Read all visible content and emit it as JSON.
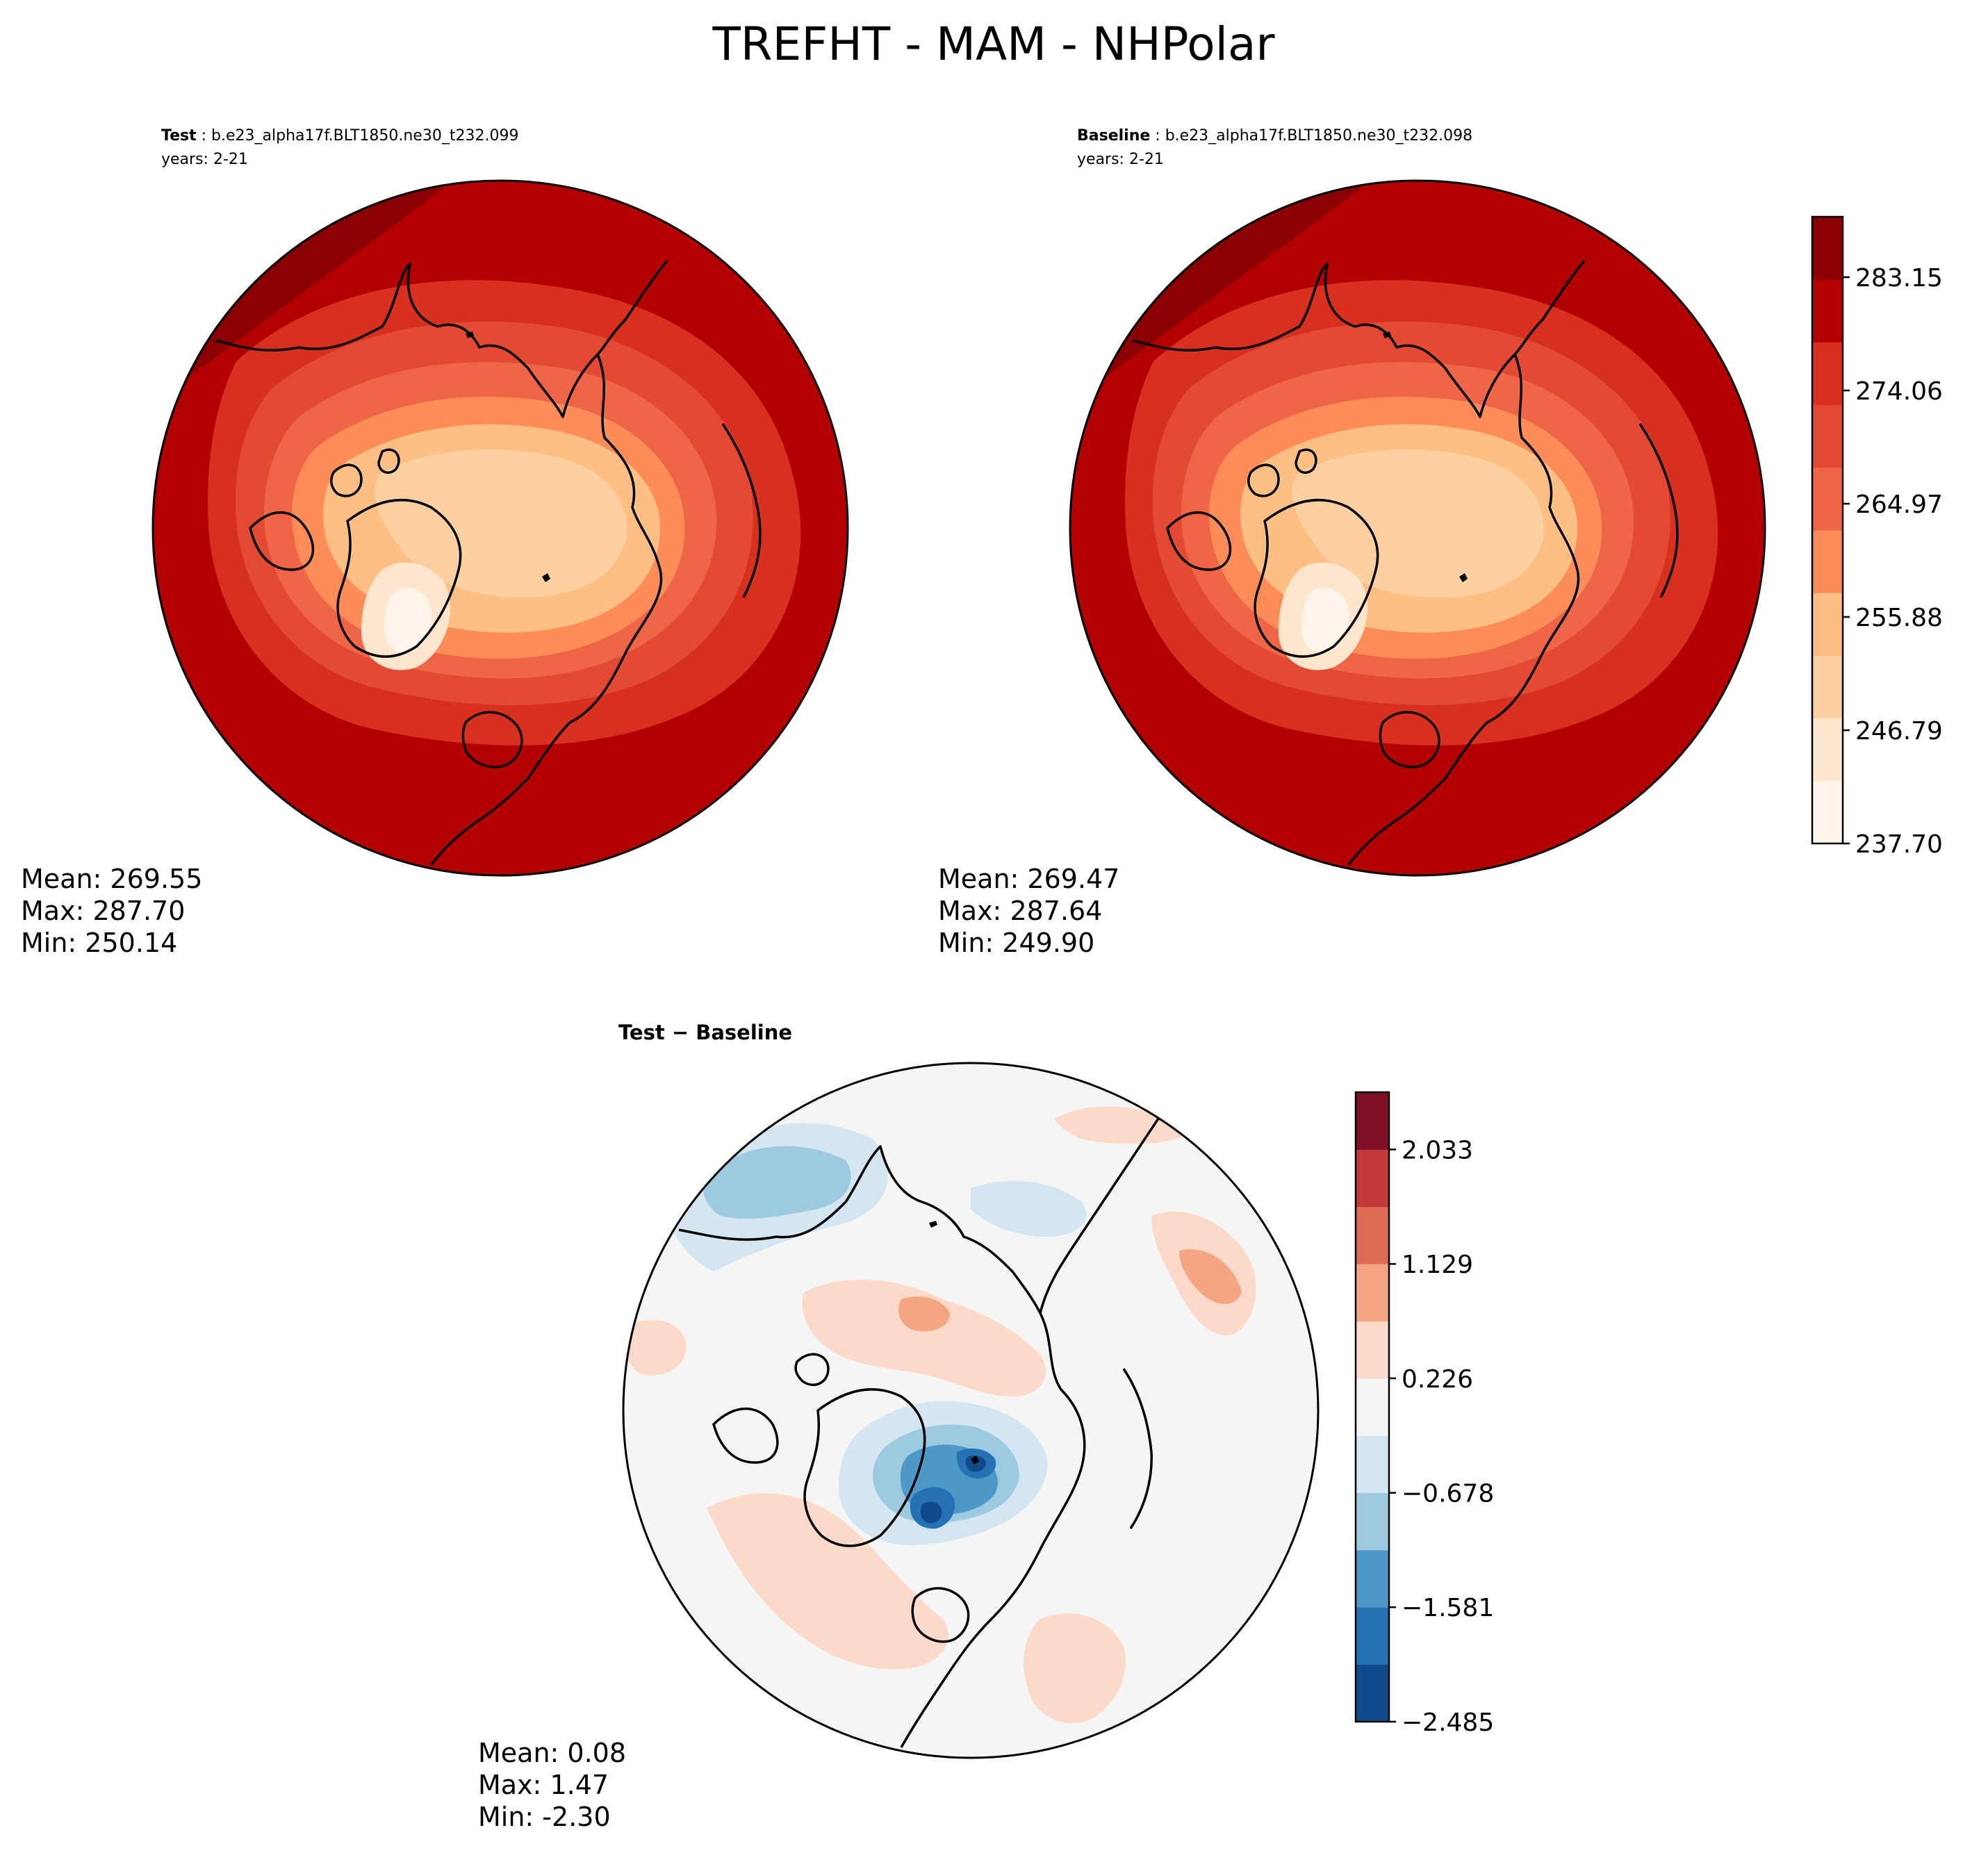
{
  "figure": {
    "title": "TREFHT - MAM - NHPolar"
  },
  "panels": {
    "test": {
      "label_bold": "Test",
      "label_rest": " : b.e23_alpha17f.BLT1850.ne30_t232.099",
      "years": "years: 2-21",
      "mean": "Mean: 269.55",
      "max": "Max: 287.70",
      "min": "Min: 250.14"
    },
    "baseline": {
      "label_bold": "Baseline",
      "label_rest": " : b.e23_alpha17f.BLT1850.ne30_t232.098",
      "years": "years: 2-21",
      "mean": "Mean: 269.47",
      "max": "Max: 287.64",
      "min": "Min: 249.90"
    },
    "diff": {
      "title": "Test − Baseline",
      "mean": "Mean:  0.08",
      "max": "Max:  1.47",
      "min": "Min: -2.30"
    }
  },
  "colors": {
    "field_levels": [
      "#fff5eb",
      "#fee6ce",
      "#fdd0a2",
      "#fdbf84",
      "#fc8d59",
      "#ef6548",
      "#e34a33",
      "#d7301f",
      "#b30000",
      "#8b0000"
    ],
    "diff_levels": [
      "#104a8b",
      "#2671b4",
      "#4d98c7",
      "#9ecae1",
      "#d4e6f2",
      "#f5f5f5",
      "#fdd9c9",
      "#f4a582",
      "#de6b54",
      "#c23a3a",
      "#7f0f26"
    ]
  },
  "chart_data": [
    {
      "type": "heatmap",
      "name": "test",
      "projection": "north-polar-stereographic",
      "statistics": {
        "mean": 269.55,
        "max": 287.7,
        "min": 250.14
      }
    },
    {
      "type": "heatmap",
      "name": "baseline",
      "projection": "north-polar-stereographic",
      "statistics": {
        "mean": 269.47,
        "max": 287.64,
        "min": 249.9
      }
    },
    {
      "type": "heatmap",
      "name": "test-baseline",
      "projection": "north-polar-stereographic",
      "statistics": {
        "mean": 0.08,
        "max": 1.47,
        "min": -2.3
      }
    }
  ],
  "colorbars": {
    "field": {
      "range": [
        237.7,
        288.0
      ],
      "levels_count": 11,
      "ticks": [
        237.7,
        246.79,
        255.88,
        264.97,
        274.06,
        283.15
      ],
      "tick_labels": [
        "237.70",
        "246.79",
        "255.88",
        "264.97",
        "274.06",
        "283.15"
      ]
    },
    "diff": {
      "range": [
        -2.485,
        2.485
      ],
      "levels_count": 11,
      "ticks": [
        -2.485,
        -1.581,
        -0.678,
        0.226,
        1.129,
        2.033
      ],
      "tick_labels": [
        "−2.485",
        "−1.581",
        "−0.678",
        "0.226",
        "1.129",
        "2.033"
      ]
    }
  }
}
